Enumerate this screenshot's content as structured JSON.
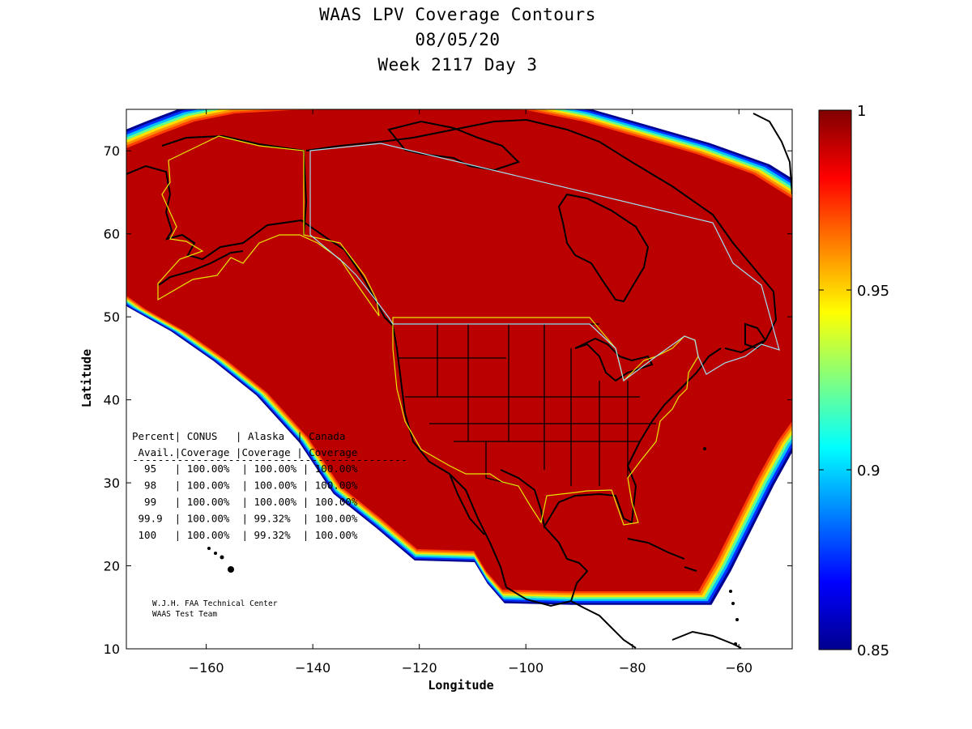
{
  "title": {
    "line1": "WAAS LPV Coverage Contours",
    "line2": "08/05/20",
    "line3": "Week 2117 Day 3"
  },
  "axes": {
    "xlabel": "Longitude",
    "ylabel": "Latitude",
    "xlim": [
      -175,
      -50
    ],
    "ylim": [
      10,
      75
    ],
    "xticks": [
      -160,
      -140,
      -120,
      -100,
      -80,
      -60
    ],
    "yticks": [
      10,
      20,
      30,
      40,
      50,
      60,
      70
    ]
  },
  "colorbar": {
    "min": 0.85,
    "max": 1,
    "ticks": [
      {
        "value": 1,
        "label": "1"
      },
      {
        "value": 0.95,
        "label": "0.95"
      },
      {
        "value": 0.9,
        "label": "0.9"
      },
      {
        "value": 0.85,
        "label": "0.85"
      }
    ],
    "colormap": [
      "#00008f",
      "#0000ff",
      "#0080ff",
      "#00ffff",
      "#80ff80",
      "#ffff00",
      "#ff8000",
      "#ff0000",
      "#800000"
    ]
  },
  "colors": {
    "coverage_fill": "#bb0000",
    "coverage_edge": [
      "#ff4000",
      "#ff9000",
      "#ffe000",
      "#60ff90",
      "#00c0ff",
      "#0030ff",
      "#00008f"
    ],
    "conus_boundary": "#e8e800",
    "canada_boundary": "#a0e0f0"
  },
  "coverage_table": {
    "header1": "Percent| CONUS   | Alaska  | Canada",
    "header2": " Avail.|Coverage |Coverage | Coverage",
    "separator": "-------------------------------------------",
    "rows": [
      "  95   | 100.00%  | 100.00% | 100.00%",
      "  98   | 100.00%  | 100.00% | 100.00%",
      "  99   | 100.00%  | 100.00% | 100.00%",
      " 99.9  | 100.00%  | 99.32%  | 100.00%",
      " 100   | 100.00%  | 99.32%  | 100.00%"
    ]
  },
  "credit": {
    "line1": "W.J.H. FAA Technical Center",
    "line2": "WAAS Test Team"
  }
}
